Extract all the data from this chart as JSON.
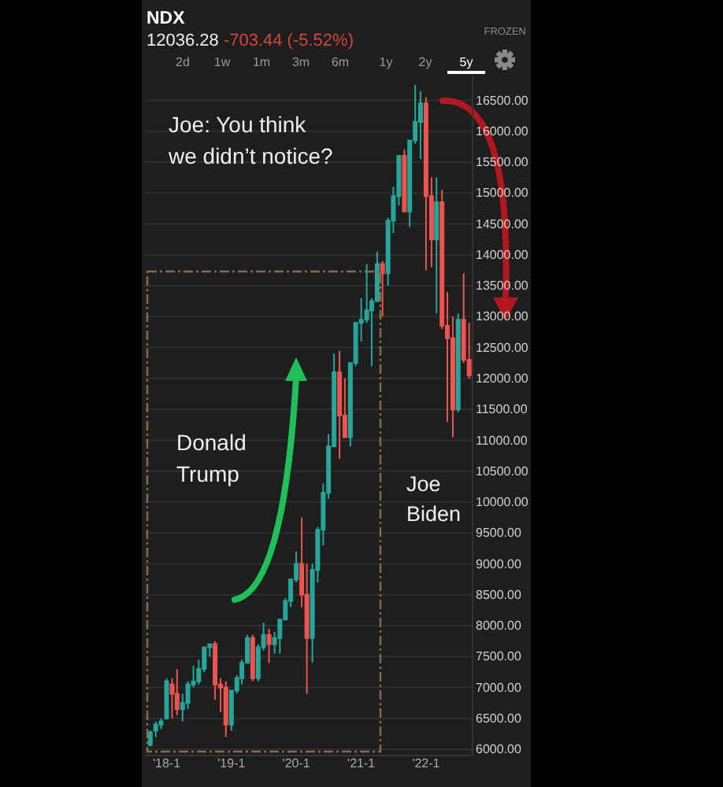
{
  "chart_data": {
    "type": "candlestick",
    "title": "NDX",
    "subtitle": "12036.28 -703.44 (-5.52%)",
    "x": [
      "2017-10",
      "2017-11",
      "2017-12",
      "2018-01",
      "2018-02",
      "2018-03",
      "2018-04",
      "2018-05",
      "2018-06",
      "2018-07",
      "2018-08",
      "2018-09",
      "2018-10",
      "2018-11",
      "2018-12",
      "2019-01",
      "2019-02",
      "2019-03",
      "2019-04",
      "2019-05",
      "2019-06",
      "2019-07",
      "2019-08",
      "2019-09",
      "2019-10",
      "2019-11",
      "2019-12",
      "2020-01",
      "2020-02",
      "2020-03",
      "2020-04",
      "2020-05",
      "2020-06",
      "2020-07",
      "2020-08",
      "2020-09",
      "2020-10",
      "2020-11",
      "2020-12",
      "2021-01",
      "2021-02",
      "2021-03",
      "2021-04",
      "2021-05",
      "2021-06",
      "2021-07",
      "2021-08",
      "2021-09",
      "2021-10",
      "2021-11",
      "2021-12",
      "2022-01",
      "2022-02",
      "2022-03",
      "2022-04",
      "2022-05",
      "2022-06",
      "2022-07",
      "2022-08",
      "2022-09"
    ],
    "ohlc": [
      [
        6070,
        6300,
        6050,
        6280
      ],
      [
        6300,
        6450,
        6200,
        6400
      ],
      [
        6400,
        6500,
        6330,
        6450
      ],
      [
        6500,
        7150,
        6480,
        7100
      ],
      [
        7050,
        7150,
        6500,
        6900
      ],
      [
        6900,
        7300,
        6550,
        6650
      ],
      [
        6650,
        6900,
        6450,
        6750
      ],
      [
        6750,
        7100,
        6650,
        7050
      ],
      [
        7050,
        7350,
        7000,
        7100
      ],
      [
        7100,
        7450,
        7050,
        7300
      ],
      [
        7300,
        7650,
        7250,
        7650
      ],
      [
        7650,
        7700,
        7500,
        7700
      ],
      [
        7700,
        7750,
        6800,
        7050
      ],
      [
        7050,
        7150,
        6600,
        7000
      ],
      [
        7000,
        7100,
        6200,
        6400
      ],
      [
        6400,
        6950,
        6300,
        6950
      ],
      [
        6950,
        7200,
        6900,
        7150
      ],
      [
        7150,
        7450,
        7050,
        7400
      ],
      [
        7400,
        7850,
        7400,
        7800
      ],
      [
        7800,
        7850,
        7100,
        7150
      ],
      [
        7150,
        7700,
        7100,
        7650
      ],
      [
        7650,
        8050,
        7600,
        7850
      ],
      [
        7850,
        7950,
        7400,
        7700
      ],
      [
        7700,
        7900,
        7550,
        7800
      ],
      [
        7800,
        8100,
        7550,
        8100
      ],
      [
        8100,
        8450,
        8100,
        8400
      ],
      [
        8400,
        8750,
        8300,
        8750
      ],
      [
        8750,
        9200,
        8700,
        9000
      ],
      [
        9000,
        9750,
        8300,
        8500
      ],
      [
        8500,
        9000,
        6900,
        7800
      ],
      [
        7800,
        9000,
        7400,
        8900
      ],
      [
        8900,
        9600,
        8700,
        9550
      ],
      [
        9550,
        10300,
        9300,
        10150
      ],
      [
        10150,
        11100,
        10050,
        10900
      ],
      [
        10900,
        12400,
        10900,
        12100
      ],
      [
        12100,
        12450,
        10700,
        11400
      ],
      [
        11400,
        12000,
        11050,
        11050
      ],
      [
        11050,
        12250,
        10900,
        12250
      ],
      [
        12250,
        12900,
        12200,
        12900
      ],
      [
        12900,
        13300,
        12600,
        12950
      ],
      [
        12950,
        13850,
        12900,
        13100
      ],
      [
        13100,
        13300,
        12200,
        13250
      ],
      [
        13250,
        14050,
        13250,
        13850
      ],
      [
        13850,
        13900,
        13000,
        13700
      ],
      [
        13700,
        14600,
        13500,
        14550
      ],
      [
        14550,
        15100,
        14350,
        14950
      ],
      [
        14950,
        15600,
        14800,
        15600
      ],
      [
        15600,
        15700,
        14700,
        14700
      ],
      [
        14700,
        15850,
        14450,
        15850
      ],
      [
        15850,
        16750,
        15800,
        16150
      ],
      [
        16150,
        16650,
        15550,
        16450
      ],
      [
        16450,
        16550,
        13750,
        14950
      ],
      [
        14950,
        15250,
        13800,
        14250
      ],
      [
        14250,
        15250,
        13050,
        14850
      ],
      [
        14850,
        15050,
        12800,
        12850
      ],
      [
        12850,
        13400,
        11300,
        12650
      ],
      [
        12650,
        13000,
        11050,
        11500
      ],
      [
        11500,
        13050,
        11450,
        12950
      ],
      [
        12950,
        13700,
        12250,
        12300
      ],
      [
        12300,
        12900,
        12000,
        12050
      ]
    ],
    "colors": [
      "#26a69a",
      "#26a69a",
      "#26a69a",
      "#26a69a",
      "#ef5350",
      "#ef5350",
      "#26a69a",
      "#26a69a",
      "#26a69a",
      "#26a69a",
      "#26a69a",
      "#26a69a",
      "#ef5350",
      "#ef5350",
      "#ef5350",
      "#26a69a",
      "#26a69a",
      "#26a69a",
      "#26a69a",
      "#ef5350",
      "#26a69a",
      "#26a69a",
      "#ef5350",
      "#26a69a",
      "#26a69a",
      "#26a69a",
      "#26a69a",
      "#26a69a",
      "#ef5350",
      "#ef5350",
      "#26a69a",
      "#26a69a",
      "#26a69a",
      "#26a69a",
      "#26a69a",
      "#ef5350",
      "#ef5350",
      "#26a69a",
      "#26a69a",
      "#26a69a",
      "#26a69a",
      "#26a69a",
      "#26a69a",
      "#ef5350",
      "#26a69a",
      "#26a69a",
      "#26a69a",
      "#ef5350",
      "#26a69a",
      "#26a69a",
      "#26a69a",
      "#ef5350",
      "#ef5350",
      "#26a69a",
      "#ef5350",
      "#ef5350",
      "#ef5350",
      "#26a69a",
      "#ef5350",
      "#ef5350"
    ],
    "xlim": [
      "2017-09",
      "2022-09-20"
    ],
    "xticks": [
      {
        "value": "2018-01",
        "label": "'18-1"
      },
      {
        "value": "2019-01",
        "label": "'19-1"
      },
      {
        "value": "2020-01",
        "label": "'20-1"
      },
      {
        "value": "2021-01",
        "label": "'21-1"
      },
      {
        "value": "2022-01",
        "label": "'22-1"
      }
    ],
    "ylim": [
      5900,
      16900
    ],
    "yticks": [
      {
        "value": 6000,
        "label": "6000.00"
      },
      {
        "value": 6500,
        "label": "6500.00"
      },
      {
        "value": 7000,
        "label": "7000.00"
      },
      {
        "value": 7500,
        "label": "7500.00"
      },
      {
        "value": 8000,
        "label": "8000.00"
      },
      {
        "value": 8500,
        "label": "8500.00"
      },
      {
        "value": 9000,
        "label": "9000.00"
      },
      {
        "value": 9500,
        "label": "9500.00"
      },
      {
        "value": 10000,
        "label": "10000.00"
      },
      {
        "value": 10500,
        "label": "10500.00"
      },
      {
        "value": 11000,
        "label": "11000.00"
      },
      {
        "value": 11500,
        "label": "11500.00"
      },
      {
        "value": 12000,
        "label": "12000.00"
      },
      {
        "value": 12500,
        "label": "12500.00"
      },
      {
        "value": 13000,
        "label": "13000.00"
      },
      {
        "value": 13500,
        "label": "13500.00"
      },
      {
        "value": 14000,
        "label": "14000.00"
      },
      {
        "value": 14500,
        "label": "14500.00"
      },
      {
        "value": 15000,
        "label": "15000.00"
      },
      {
        "value": 15500,
        "label": "15500.00"
      },
      {
        "value": 16000,
        "label": "16000.00"
      },
      {
        "value": 16500,
        "label": "16500.00"
      }
    ],
    "grid": "y",
    "annotations": [
      "FROZEN",
      "2d",
      "1w",
      "1m",
      "3m",
      "6m",
      "1y",
      "2y",
      "5y",
      "Joe: You think we didn’t notice?",
      "Donald Trump",
      "Joe Biden"
    ]
  }
}
